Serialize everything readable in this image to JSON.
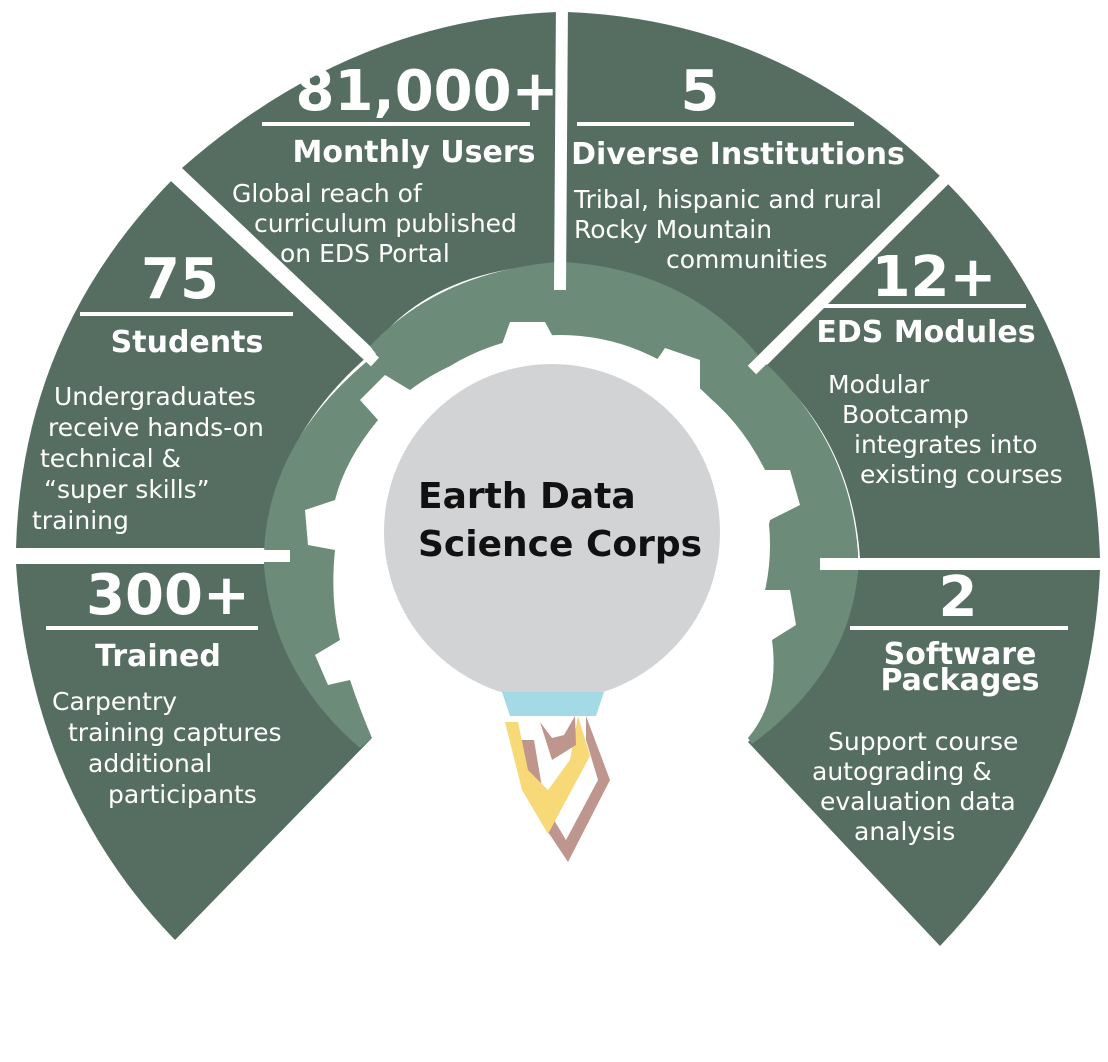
{
  "center": {
    "title_line1": "Earth Data",
    "title_line2": "Science Corps"
  },
  "colors": {
    "segment": "#566e61",
    "ring": "#6d8b79",
    "hub": "#d2d3d5",
    "flame_outer": "#bf968d",
    "flame_inner": "#f7d978",
    "nozzle": "#a4dae6"
  },
  "segments": [
    {
      "number": "300+",
      "label": "Trained",
      "desc": [
        "Carpentry",
        "training captures",
        "additional",
        "participants"
      ]
    },
    {
      "number": "75",
      "label": "Students",
      "desc": [
        "Undergraduates",
        "receive hands-on",
        "technical &",
        "“super  skills”",
        "training"
      ]
    },
    {
      "number": "81,000+",
      "label": "Monthly Users",
      "desc": [
        "Global reach of",
        "curriculum published",
        "on EDS Portal"
      ]
    },
    {
      "number": "5",
      "label": "Diverse Institutions",
      "desc": [
        "Tribal, hispanic and rural",
        "Rocky Mountain",
        "communities"
      ]
    },
    {
      "number": "12+",
      "label": "EDS Modules",
      "desc": [
        "Modular",
        "Bootcamp",
        "integrates into",
        "existing courses"
      ]
    },
    {
      "number": "2",
      "label": "Software Packages",
      "label_lines": [
        "Software",
        "Packages"
      ],
      "desc": [
        "Support course",
        "autograding &",
        "evaluation data",
        "analysis"
      ]
    }
  ]
}
